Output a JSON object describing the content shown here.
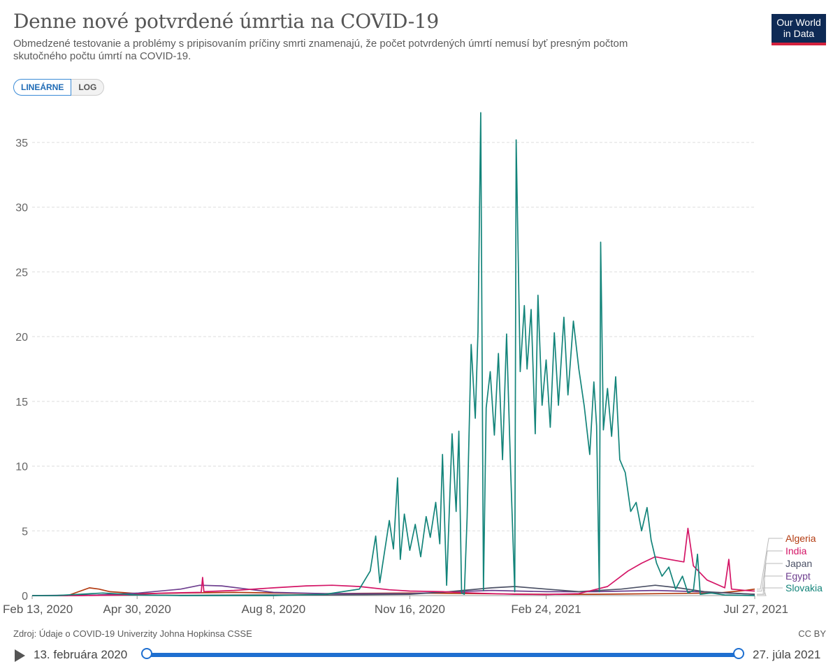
{
  "header": {
    "title": "Denne nové potvrdené úmrtia na COVID-19",
    "subtitle": "Obmedzené testovanie a problémy s pripisovaním príčiny smrti znamenajú, že počet potvrdených úmrtí nemusí byť presným počtom skutočného počtu úmrtí na COVID-19.",
    "logo_line1": "Our World",
    "logo_line2": "in Data"
  },
  "controls": {
    "linear_label": "LINEÁRNE",
    "log_label": "LOG"
  },
  "footer": {
    "source": "Zdroj: Údaje o COVID-19 Univerzity Johna Hopkinsa CSSE",
    "license": "CC BY"
  },
  "timeline": {
    "start_label": "13. februára 2020",
    "end_label": "27. júla 2021"
  },
  "colors": {
    "Algeria": "#b33c12",
    "India": "#d41566",
    "Japan": "#4c5166",
    "Egypt": "#6e3f8f",
    "Slovakia": "#13847a",
    "grid": "#dddddd"
  },
  "chart_data": {
    "type": "line",
    "title": "Denne nové potvrdené úmrtia na COVID-19",
    "ylim": [
      0,
      37.5
    ],
    "yticks": [
      0,
      5,
      10,
      15,
      20,
      25,
      30,
      35
    ],
    "xlim": [
      "2020-02-13",
      "2021-07-27"
    ],
    "xtick_labels": [
      {
        "date": "2020-02-13",
        "label": "Feb 13, 2020"
      },
      {
        "date": "2020-04-30",
        "label": "Apr 30, 2020"
      },
      {
        "date": "2020-08-08",
        "label": "Aug 8, 2020"
      },
      {
        "date": "2020-11-16",
        "label": "Nov 16, 2020"
      },
      {
        "date": "2021-02-24",
        "label": "Feb 24, 2021"
      },
      {
        "date": "2021-07-27",
        "label": "Jul 27, 2021"
      }
    ],
    "grid": true,
    "legend_placement": "right-end",
    "series": [
      {
        "name": "Algeria",
        "points": [
          [
            "2020-02-13",
            0
          ],
          [
            "2020-03-10",
            0
          ],
          [
            "2020-03-26",
            0.6
          ],
          [
            "2020-04-02",
            0.5
          ],
          [
            "2020-04-10",
            0.3
          ],
          [
            "2020-05-01",
            0.15
          ],
          [
            "2020-06-01",
            0.2
          ],
          [
            "2020-07-10",
            0.25
          ],
          [
            "2020-08-08",
            0.2
          ],
          [
            "2020-09-15",
            0.15
          ],
          [
            "2020-11-16",
            0.2
          ],
          [
            "2021-01-01",
            0.15
          ],
          [
            "2021-02-24",
            0.1
          ],
          [
            "2021-04-01",
            0.1
          ],
          [
            "2021-05-20",
            0.15
          ],
          [
            "2021-06-30",
            0.2
          ],
          [
            "2021-07-20",
            0.4
          ],
          [
            "2021-07-27",
            0.5
          ]
        ]
      },
      {
        "name": "India",
        "points": [
          [
            "2020-02-13",
            0
          ],
          [
            "2020-03-20",
            0
          ],
          [
            "2020-04-20",
            0.05
          ],
          [
            "2020-05-20",
            0.2
          ],
          [
            "2020-06-16",
            0.25
          ],
          [
            "2020-06-17",
            1.4
          ],
          [
            "2020-06-18",
            0.3
          ],
          [
            "2020-07-10",
            0.4
          ],
          [
            "2020-08-08",
            0.6
          ],
          [
            "2020-09-01",
            0.75
          ],
          [
            "2020-09-20",
            0.8
          ],
          [
            "2020-10-10",
            0.7
          ],
          [
            "2020-11-01",
            0.45
          ],
          [
            "2020-11-16",
            0.35
          ],
          [
            "2020-12-10",
            0.3
          ],
          [
            "2021-01-01",
            0.2
          ],
          [
            "2021-02-01",
            0.1
          ],
          [
            "2021-02-24",
            0.08
          ],
          [
            "2021-03-20",
            0.15
          ],
          [
            "2021-04-10",
            0.7
          ],
          [
            "2021-04-25",
            1.9
          ],
          [
            "2021-05-05",
            2.5
          ],
          [
            "2021-05-15",
            3.0
          ],
          [
            "2021-05-25",
            2.8
          ],
          [
            "2021-06-05",
            2.6
          ],
          [
            "2021-06-08",
            5.2
          ],
          [
            "2021-06-12",
            2.3
          ],
          [
            "2021-06-22",
            1.2
          ],
          [
            "2021-07-05",
            0.6
          ],
          [
            "2021-07-08",
            2.8
          ],
          [
            "2021-07-10",
            0.5
          ],
          [
            "2021-07-20",
            0.4
          ],
          [
            "2021-07-27",
            0.35
          ]
        ]
      },
      {
        "name": "Japan",
        "points": [
          [
            "2020-02-13",
            0
          ],
          [
            "2020-04-01",
            0.02
          ],
          [
            "2020-05-01",
            0.05
          ],
          [
            "2020-06-01",
            0.02
          ],
          [
            "2020-08-08",
            0.05
          ],
          [
            "2020-09-15",
            0.05
          ],
          [
            "2020-11-16",
            0.1
          ],
          [
            "2020-12-15",
            0.3
          ],
          [
            "2021-01-15",
            0.6
          ],
          [
            "2021-02-01",
            0.7
          ],
          [
            "2021-02-24",
            0.5
          ],
          [
            "2021-03-20",
            0.3
          ],
          [
            "2021-04-20",
            0.5
          ],
          [
            "2021-05-15",
            0.8
          ],
          [
            "2021-06-01",
            0.6
          ],
          [
            "2021-06-20",
            0.3
          ],
          [
            "2021-07-27",
            0.1
          ]
        ]
      },
      {
        "name": "Egypt",
        "points": [
          [
            "2020-02-13",
            0
          ],
          [
            "2020-04-01",
            0.05
          ],
          [
            "2020-05-01",
            0.2
          ],
          [
            "2020-06-01",
            0.5
          ],
          [
            "2020-06-15",
            0.8
          ],
          [
            "2020-07-01",
            0.75
          ],
          [
            "2020-07-20",
            0.5
          ],
          [
            "2020-08-08",
            0.25
          ],
          [
            "2020-09-15",
            0.15
          ],
          [
            "2020-11-16",
            0.15
          ],
          [
            "2020-12-20",
            0.3
          ],
          [
            "2021-01-15",
            0.4
          ],
          [
            "2021-02-24",
            0.3
          ],
          [
            "2021-04-01",
            0.3
          ],
          [
            "2021-05-15",
            0.4
          ],
          [
            "2021-06-15",
            0.3
          ],
          [
            "2021-07-27",
            0.1
          ]
        ]
      },
      {
        "name": "Slovakia",
        "points": [
          [
            "2020-02-13",
            0
          ],
          [
            "2020-03-01",
            0
          ],
          [
            "2020-04-05",
            0.2
          ],
          [
            "2020-05-01",
            0.05
          ],
          [
            "2020-06-01",
            0
          ],
          [
            "2020-08-08",
            0
          ],
          [
            "2020-09-15",
            0.1
          ],
          [
            "2020-10-10",
            0.5
          ],
          [
            "2020-10-18",
            1.9
          ],
          [
            "2020-10-22",
            4.6
          ],
          [
            "2020-10-25",
            1
          ],
          [
            "2020-11-01",
            5.8
          ],
          [
            "2020-11-04",
            3.6
          ],
          [
            "2020-11-07",
            9.1
          ],
          [
            "2020-11-09",
            2.8
          ],
          [
            "2020-11-12",
            6.3
          ],
          [
            "2020-11-16",
            3.5
          ],
          [
            "2020-11-20",
            5.5
          ],
          [
            "2020-11-24",
            3.0
          ],
          [
            "2020-11-28",
            6.1
          ],
          [
            "2020-12-01",
            4.5
          ],
          [
            "2020-12-05",
            7.2
          ],
          [
            "2020-12-08",
            4.0
          ],
          [
            "2020-12-10",
            10.9
          ],
          [
            "2020-12-13",
            0.8
          ],
          [
            "2020-12-17",
            12.5
          ],
          [
            "2020-12-20",
            6.5
          ],
          [
            "2020-12-22",
            12.7
          ],
          [
            "2020-12-24",
            0.2
          ],
          [
            "2020-12-26",
            0.1
          ],
          [
            "2020-12-28",
            6.0
          ],
          [
            "2020-12-31",
            19.4
          ],
          [
            "2021-01-03",
            13.7
          ],
          [
            "2021-01-05",
            20.4
          ],
          [
            "2021-01-07",
            37.3
          ],
          [
            "2021-01-09",
            0.4
          ],
          [
            "2021-01-11",
            14.5
          ],
          [
            "2021-01-14",
            17.3
          ],
          [
            "2021-01-17",
            12.4
          ],
          [
            "2021-01-20",
            18.7
          ],
          [
            "2021-01-23",
            10.5
          ],
          [
            "2021-01-26",
            20.2
          ],
          [
            "2021-01-29",
            9.5
          ],
          [
            "2021-02-01",
            0.3
          ],
          [
            "2021-02-02",
            35.2
          ],
          [
            "2021-02-05",
            17.3
          ],
          [
            "2021-02-08",
            22.4
          ],
          [
            "2021-02-10",
            17.5
          ],
          [
            "2021-02-13",
            22.1
          ],
          [
            "2021-02-16",
            12.5
          ],
          [
            "2021-02-18",
            23.2
          ],
          [
            "2021-02-21",
            14.7
          ],
          [
            "2021-02-24",
            18.2
          ],
          [
            "2021-02-27",
            13.0
          ],
          [
            "2021-03-02",
            20.3
          ],
          [
            "2021-03-05",
            14.7
          ],
          [
            "2021-03-09",
            21.5
          ],
          [
            "2021-03-12",
            15.5
          ],
          [
            "2021-03-16",
            21.2
          ],
          [
            "2021-03-20",
            17.5
          ],
          [
            "2021-03-24",
            14.6
          ],
          [
            "2021-03-28",
            10.9
          ],
          [
            "2021-03-31",
            16.5
          ],
          [
            "2021-04-02",
            13.1
          ],
          [
            "2021-04-04",
            0.3
          ],
          [
            "2021-04-05",
            27.3
          ],
          [
            "2021-04-07",
            12.8
          ],
          [
            "2021-04-10",
            16.0
          ],
          [
            "2021-04-13",
            12.3
          ],
          [
            "2021-04-16",
            16.9
          ],
          [
            "2021-04-19",
            10.5
          ],
          [
            "2021-04-23",
            9.5
          ],
          [
            "2021-04-27",
            6.5
          ],
          [
            "2021-05-01",
            7.2
          ],
          [
            "2021-05-05",
            5.0
          ],
          [
            "2021-05-09",
            6.8
          ],
          [
            "2021-05-12",
            4.3
          ],
          [
            "2021-05-16",
            2.5
          ],
          [
            "2021-05-20",
            1.5
          ],
          [
            "2021-05-25",
            2.2
          ],
          [
            "2021-05-30",
            0.5
          ],
          [
            "2021-06-04",
            1.5
          ],
          [
            "2021-06-08",
            0.2
          ],
          [
            "2021-06-12",
            0.4
          ],
          [
            "2021-06-15",
            3.2
          ],
          [
            "2021-06-17",
            0.1
          ],
          [
            "2021-06-25",
            0.2
          ],
          [
            "2021-07-05",
            0.05
          ],
          [
            "2021-07-27",
            0
          ]
        ]
      }
    ]
  }
}
